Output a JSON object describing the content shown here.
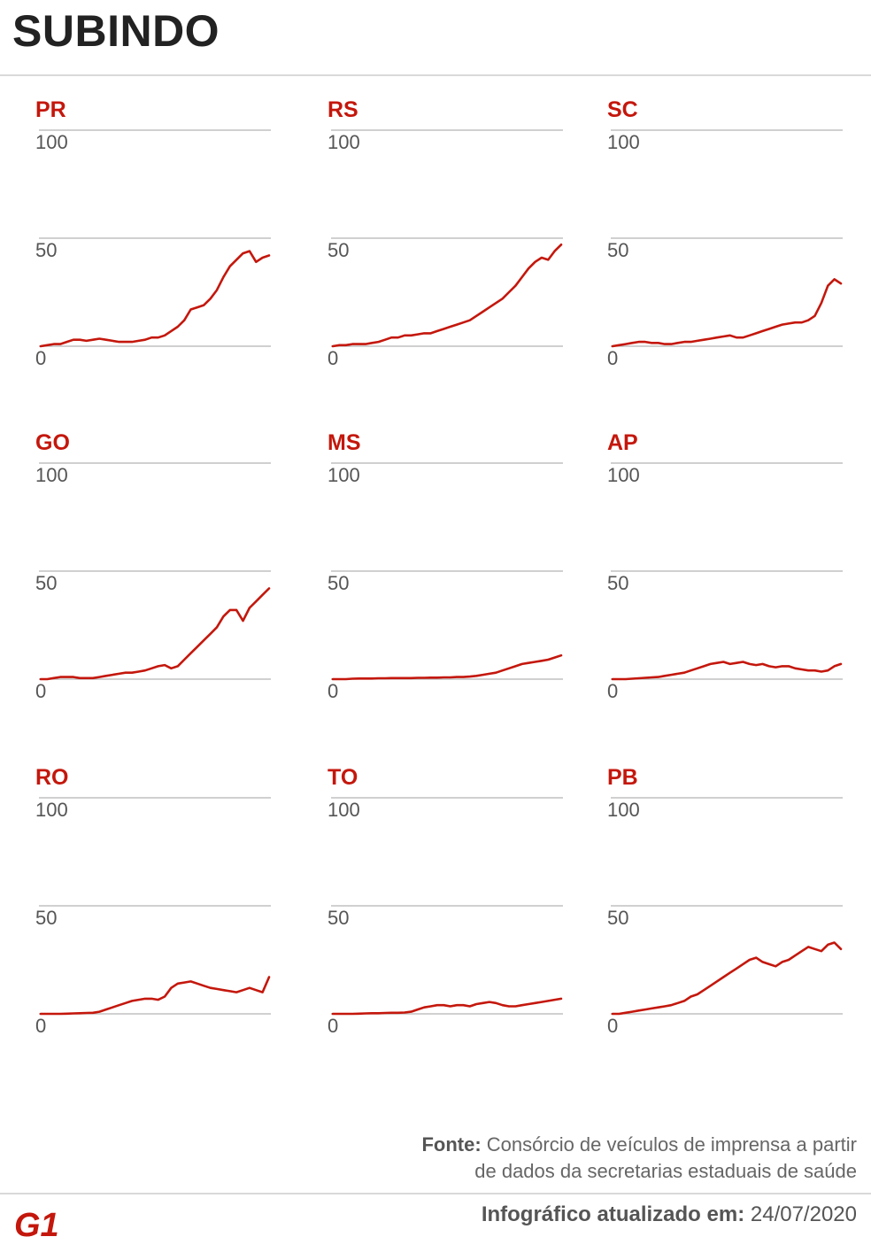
{
  "title": "SUBINDO",
  "source": {
    "label": "Fonte:",
    "line1": "Consórcio de veículos de imprensa a partir",
    "line2": "de dados da secretarias estaduais de saúde"
  },
  "updated": {
    "label": "Infográfico atualizado em:",
    "date": "24/07/2020"
  },
  "logo": {
    "text": "G1"
  },
  "colors": {
    "accent": "#c4170c",
    "grid": "#b3b3b3"
  },
  "chart_data": [
    {
      "type": "line",
      "title": "PR",
      "ylim": [
        0,
        100
      ],
      "yticks": [
        0,
        50,
        100
      ],
      "series": [
        {
          "values": [
            0,
            0.5,
            1,
            1,
            2,
            3,
            3,
            2.5,
            3,
            3.5,
            3,
            2.5,
            2,
            2,
            2,
            2.5,
            3,
            4,
            4,
            5,
            7,
            9,
            12,
            17,
            18,
            19,
            22,
            26,
            32,
            37,
            40,
            43,
            44,
            39,
            41,
            42
          ]
        }
      ]
    },
    {
      "type": "line",
      "title": "RS",
      "ylim": [
        0,
        100
      ],
      "yticks": [
        0,
        50,
        100
      ],
      "series": [
        {
          "values": [
            0,
            0.5,
            0.5,
            1,
            1,
            1,
            1.5,
            2,
            3,
            4,
            4,
            5,
            5,
            5.5,
            6,
            6,
            7,
            8,
            9,
            10,
            11,
            12,
            14,
            16,
            18,
            20,
            22,
            25,
            28,
            32,
            36,
            39,
            41,
            40,
            44,
            47
          ]
        }
      ]
    },
    {
      "type": "line",
      "title": "SC",
      "ylim": [
        0,
        100
      ],
      "yticks": [
        0,
        50,
        100
      ],
      "series": [
        {
          "values": [
            0,
            0.5,
            1,
            1.5,
            2,
            2,
            1.5,
            1.5,
            1,
            1,
            1.5,
            2,
            2,
            2.5,
            3,
            3.5,
            4,
            4.5,
            5,
            4,
            4,
            5,
            6,
            7,
            8,
            9,
            10,
            10.5,
            11,
            11,
            12,
            14,
            20,
            28,
            31,
            29
          ]
        }
      ]
    },
    {
      "type": "line",
      "title": "GO",
      "ylim": [
        0,
        100
      ],
      "yticks": [
        0,
        50,
        100
      ],
      "series": [
        {
          "values": [
            0,
            0,
            0.5,
            1,
            1,
            1,
            0.5,
            0.5,
            0.5,
            1,
            1.5,
            2,
            2.5,
            3,
            3,
            3.5,
            4,
            5,
            6,
            6.5,
            5,
            6,
            9,
            12,
            15,
            18,
            21,
            24,
            29,
            32,
            32,
            27,
            33,
            36,
            39,
            42
          ]
        }
      ]
    },
    {
      "type": "line",
      "title": "MS",
      "ylim": [
        0,
        100
      ],
      "yticks": [
        0,
        50,
        100
      ],
      "series": [
        {
          "values": [
            0,
            0,
            0,
            0.2,
            0.3,
            0.3,
            0.3,
            0.4,
            0.4,
            0.5,
            0.5,
            0.5,
            0.5,
            0.6,
            0.6,
            0.7,
            0.7,
            0.8,
            0.8,
            1,
            1,
            1.2,
            1.5,
            2,
            2.5,
            3,
            4,
            5,
            6,
            7,
            7.5,
            8,
            8.5,
            9,
            10,
            11
          ]
        }
      ]
    },
    {
      "type": "line",
      "title": "AP",
      "ylim": [
        0,
        100
      ],
      "yticks": [
        0,
        50,
        100
      ],
      "series": [
        {
          "values": [
            0,
            0,
            0,
            0.2,
            0.4,
            0.6,
            0.8,
            1,
            1.5,
            2,
            2.5,
            3,
            4,
            5,
            6,
            7,
            7.5,
            8,
            7,
            7.5,
            8,
            7,
            6.5,
            7,
            6,
            5.5,
            6,
            6,
            5,
            4.5,
            4,
            4,
            3.5,
            4,
            6,
            7
          ]
        }
      ]
    },
    {
      "type": "line",
      "title": "RO",
      "ylim": [
        0,
        100
      ],
      "yticks": [
        0,
        50,
        100
      ],
      "series": [
        {
          "values": [
            0,
            0,
            0,
            0,
            0.1,
            0.2,
            0.3,
            0.4,
            0.5,
            1,
            2,
            3,
            4,
            5,
            6,
            6.5,
            7,
            7,
            6.5,
            8,
            12,
            14,
            14.5,
            15,
            14,
            13,
            12,
            11.5,
            11,
            10.5,
            10,
            11,
            12,
            11,
            10,
            17
          ]
        }
      ]
    },
    {
      "type": "line",
      "title": "TO",
      "ylim": [
        0,
        100
      ],
      "yticks": [
        0,
        50,
        100
      ],
      "series": [
        {
          "values": [
            0,
            0,
            0,
            0,
            0.1,
            0.2,
            0.3,
            0.3,
            0.4,
            0.5,
            0.5,
            0.6,
            1,
            2,
            3,
            3.5,
            4,
            4,
            3.5,
            4,
            4,
            3.5,
            4.5,
            5,
            5.5,
            5,
            4,
            3.5,
            3.5,
            4,
            4.5,
            5,
            5.5,
            6,
            6.5,
            7
          ]
        }
      ]
    },
    {
      "type": "line",
      "title": "PB",
      "ylim": [
        0,
        100
      ],
      "yticks": [
        0,
        50,
        100
      ],
      "series": [
        {
          "values": [
            0,
            0,
            0.5,
            1,
            1.5,
            2,
            2.5,
            3,
            3.5,
            4,
            5,
            6,
            8,
            9,
            11,
            13,
            15,
            17,
            19,
            21,
            23,
            25,
            26,
            24,
            23,
            22,
            24,
            25,
            27,
            29,
            31,
            30,
            29,
            32,
            33,
            30
          ]
        }
      ]
    }
  ]
}
